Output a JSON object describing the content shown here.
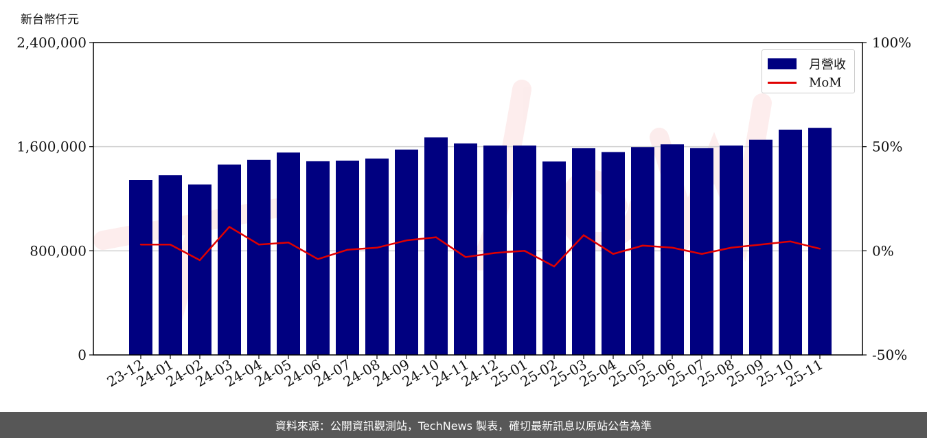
{
  "unit_label": "新台幣仟元",
  "footer_text": "資料來源：公開資訊觀測站，TechNews 製表，確切最新訊息以原站公告為準",
  "colors": {
    "bar": "#000080",
    "line": "#e00000",
    "grid": "#d0d0d0",
    "footer_bg": "#575757"
  },
  "chart_data": {
    "type": "bar",
    "categories": [
      "23-12",
      "24-01",
      "24-02",
      "24-03",
      "24-04",
      "24-05",
      "24-06",
      "24-07",
      "24-08",
      "24-09",
      "24-10",
      "24-11",
      "24-12",
      "25-01",
      "25-02",
      "25-03",
      "25-04",
      "25-05",
      "25-06",
      "25-07",
      "25-08",
      "25-09",
      "25-10",
      "25-11"
    ],
    "series": [
      {
        "name": "月營收",
        "axis": "left",
        "type": "bar",
        "values": [
          1345000,
          1381000,
          1310000,
          1463000,
          1499000,
          1555000,
          1488000,
          1493000,
          1509000,
          1578000,
          1671000,
          1625000,
          1609000,
          1609000,
          1486000,
          1588000,
          1559000,
          1597000,
          1618000,
          1589000,
          1609000,
          1653000,
          1731000,
          1745000
        ]
      },
      {
        "name": "MoM",
        "axis": "right",
        "type": "line",
        "values": [
          3.0,
          3.0,
          -4.5,
          11.5,
          3.0,
          4.0,
          -4.0,
          0.5,
          1.5,
          5.0,
          6.5,
          -3.0,
          -1.0,
          0.0,
          -7.5,
          7.5,
          -1.5,
          2.5,
          1.5,
          -1.5,
          1.5,
          3.0,
          4.5,
          1.0
        ]
      }
    ],
    "y_left": {
      "lim": [
        0,
        2400000
      ],
      "ticks": [
        "0",
        "800,000",
        "1,600,000",
        "2,400,000"
      ],
      "tick_values": [
        0,
        800000,
        1600000,
        2400000
      ]
    },
    "y_right": {
      "lim": [
        -50,
        100
      ],
      "ticks": [
        "-50%",
        "0%",
        "50%",
        "100%"
      ],
      "tick_values": [
        -50,
        0,
        50,
        100
      ]
    },
    "grid": "horizontal",
    "legend_position": "top-right",
    "legend": [
      "月營收",
      "MoM"
    ]
  }
}
